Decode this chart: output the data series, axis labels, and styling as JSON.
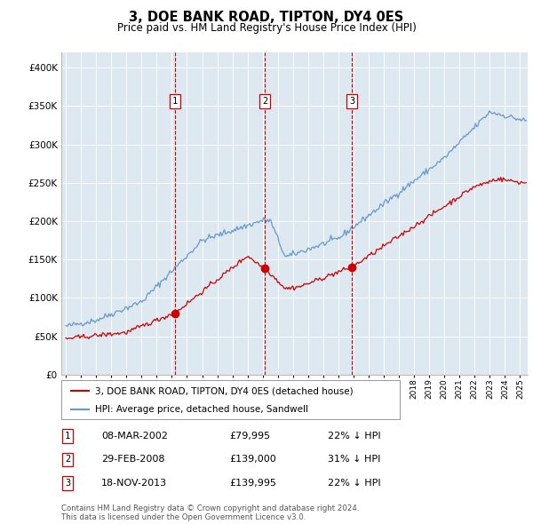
{
  "title": "3, DOE BANK ROAD, TIPTON, DY4 0ES",
  "subtitle": "Price paid vs. HM Land Registry's House Price Index (HPI)",
  "legend_label_red": "3, DOE BANK ROAD, TIPTON, DY4 0ES (detached house)",
  "legend_label_blue": "HPI: Average price, detached house, Sandwell",
  "footer": "Contains HM Land Registry data © Crown copyright and database right 2024.\nThis data is licensed under the Open Government Licence v3.0.",
  "transactions": [
    {
      "num": 1,
      "date": "08-MAR-2002",
      "price": 79995,
      "price_str": "£79,995",
      "pct": "22%",
      "dir": "↓"
    },
    {
      "num": 2,
      "date": "29-FEB-2008",
      "price": 139000,
      "price_str": "£139,000",
      "pct": "31%",
      "dir": "↓"
    },
    {
      "num": 3,
      "date": "18-NOV-2013",
      "price": 139995,
      "price_str": "£139,995",
      "pct": "22%",
      "dir": "↓"
    }
  ],
  "transaction_years": [
    2002.19,
    2008.16,
    2013.89
  ],
  "transaction_prices": [
    79995,
    139000,
    139995
  ],
  "vline_color": "#cc0000",
  "red_line_color": "#cc0000",
  "blue_line_color": "#6699cc",
  "plot_bg": "#dde8f0",
  "ylim": [
    0,
    420000
  ],
  "yticks": [
    0,
    50000,
    100000,
    150000,
    200000,
    250000,
    300000,
    350000,
    400000
  ],
  "xlim_start": 1994.7,
  "xlim_end": 2025.5
}
